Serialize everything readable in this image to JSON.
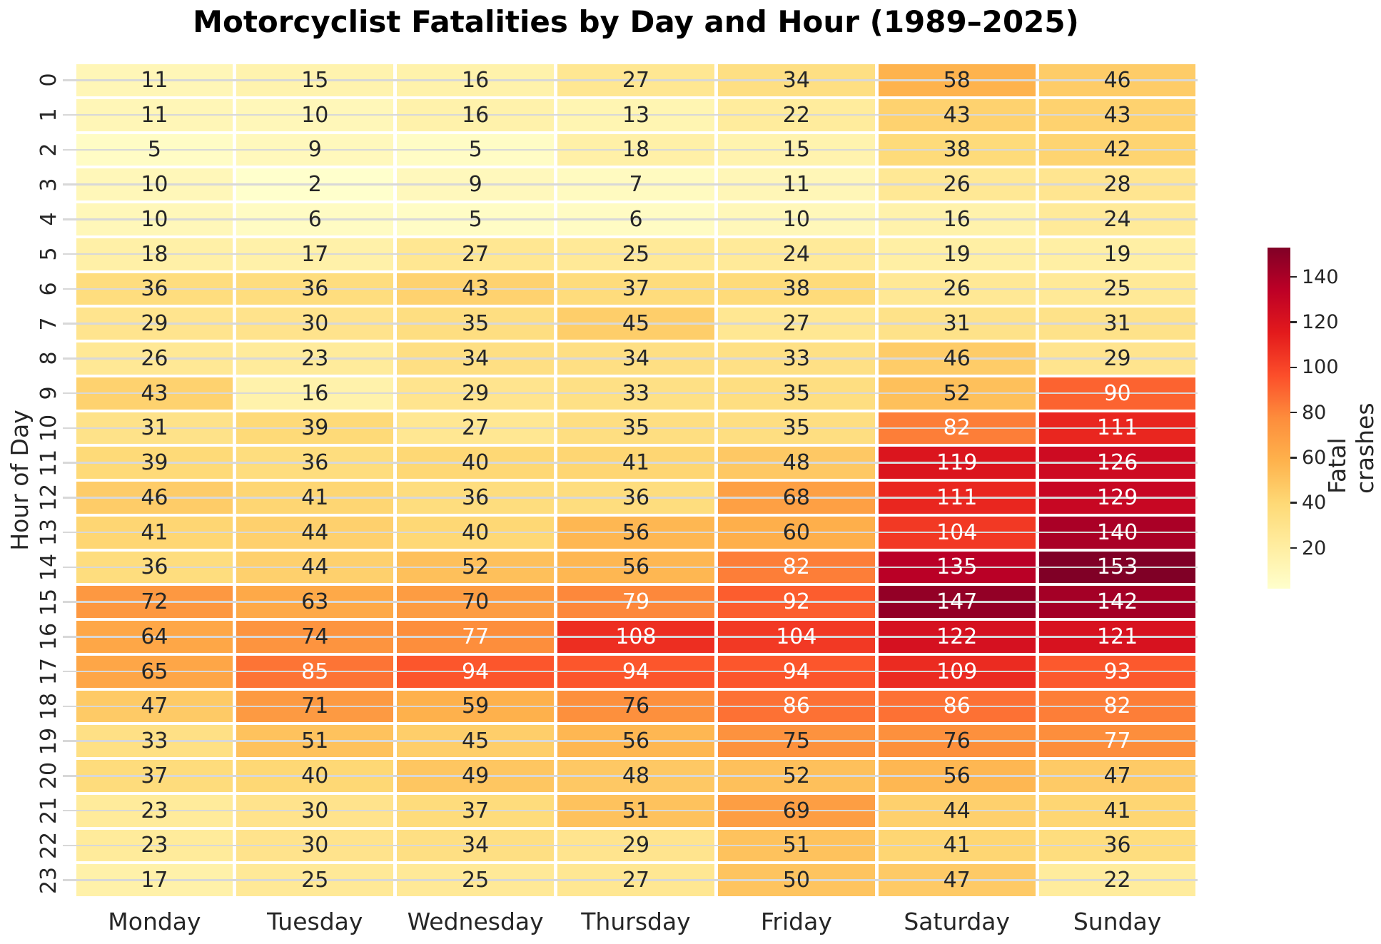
{
  "title": "Motorcyclist Fatalities by Day and Hour (1989–2025)",
  "axes": {
    "y_label": "Hour of Day",
    "x_tick_labels": [
      "Monday",
      "Tuesday",
      "Wednesday",
      "Thursday",
      "Friday",
      "Saturday",
      "Sunday"
    ],
    "y_tick_labels": [
      "0",
      "1",
      "2",
      "3",
      "4",
      "5",
      "6",
      "7",
      "8",
      "9",
      "10",
      "11",
      "12",
      "13",
      "14",
      "15",
      "16",
      "17",
      "18",
      "19",
      "20",
      "21",
      "22",
      "23"
    ]
  },
  "colorbar": {
    "label": "Fatal crashes",
    "tick_values": [
      20,
      40,
      60,
      80,
      100,
      120,
      140
    ],
    "vmin": 2,
    "vmax": 153,
    "colormap_ylorrd": [
      "#ffffcc",
      "#ffeda0",
      "#fed976",
      "#feb24c",
      "#fd8d3c",
      "#fc4e2a",
      "#e31a1c",
      "#bd0026",
      "#800026"
    ],
    "text_dark": "#262626",
    "text_light": "#ffffff"
  },
  "chart_data": {
    "type": "heatmap",
    "title": "Motorcyclist Fatalities by Day and Hour (1989–2025)",
    "xlabel": "",
    "ylabel": "Hour of Day",
    "legend_label": "Fatal crashes",
    "x": [
      "Monday",
      "Tuesday",
      "Wednesday",
      "Thursday",
      "Friday",
      "Saturday",
      "Sunday"
    ],
    "y": [
      0,
      1,
      2,
      3,
      4,
      5,
      6,
      7,
      8,
      9,
      10,
      11,
      12,
      13,
      14,
      15,
      16,
      17,
      18,
      19,
      20,
      21,
      22,
      23
    ],
    "values": [
      [
        11,
        15,
        16,
        27,
        34,
        58,
        46
      ],
      [
        11,
        10,
        16,
        13,
        22,
        43,
        43
      ],
      [
        5,
        9,
        5,
        18,
        15,
        38,
        42
      ],
      [
        10,
        2,
        9,
        7,
        11,
        26,
        28
      ],
      [
        10,
        6,
        5,
        6,
        10,
        16,
        24
      ],
      [
        18,
        17,
        27,
        25,
        24,
        19,
        19
      ],
      [
        36,
        36,
        43,
        37,
        38,
        26,
        25
      ],
      [
        29,
        30,
        35,
        45,
        27,
        31,
        31
      ],
      [
        26,
        23,
        34,
        34,
        33,
        46,
        29
      ],
      [
        43,
        16,
        29,
        33,
        35,
        52,
        90
      ],
      [
        31,
        39,
        27,
        35,
        35,
        82,
        111
      ],
      [
        39,
        36,
        40,
        41,
        48,
        119,
        126
      ],
      [
        46,
        41,
        36,
        36,
        68,
        111,
        129
      ],
      [
        41,
        44,
        40,
        56,
        60,
        104,
        140
      ],
      [
        36,
        44,
        52,
        56,
        82,
        135,
        153
      ],
      [
        72,
        63,
        70,
        79,
        92,
        147,
        142
      ],
      [
        64,
        74,
        77,
        108,
        104,
        122,
        121
      ],
      [
        65,
        85,
        94,
        94,
        94,
        109,
        93
      ],
      [
        47,
        71,
        59,
        76,
        86,
        86,
        82
      ],
      [
        33,
        51,
        45,
        56,
        75,
        76,
        77
      ],
      [
        37,
        40,
        49,
        48,
        52,
        56,
        47
      ],
      [
        23,
        30,
        37,
        51,
        69,
        44,
        41
      ],
      [
        23,
        30,
        34,
        29,
        51,
        41,
        36
      ],
      [
        17,
        25,
        25,
        27,
        50,
        47,
        22
      ]
    ],
    "value_range": [
      2,
      153
    ],
    "colormap": "YlOrRd",
    "annotated": true,
    "grid": "horizontal-white-gridlines-at-row-centers",
    "legend_position": "right-colorbar"
  }
}
